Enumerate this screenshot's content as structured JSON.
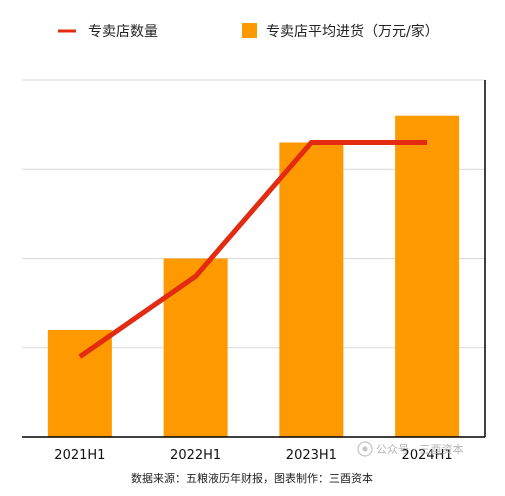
{
  "legend": {
    "line_label": "专卖店数量",
    "bar_label": "专卖店平均进货（万元/家）"
  },
  "source_note": "数据来源：五粮液历年财报，图表制作：三酉资本",
  "watermark": "公众号 · 三酉资本",
  "colors": {
    "bar": "#FF9900",
    "line": "#E22B10",
    "grid": "#D9D9D9",
    "axis": "#000000"
  },
  "chart_data": {
    "type": "bar",
    "title": "",
    "xlabel": "",
    "ylabel": "",
    "categories": [
      "2021H1",
      "2022H1",
      "2023H1",
      "2024H1"
    ],
    "series": [
      {
        "name": "专卖店平均进货（万元/家）",
        "type": "bar",
        "axis": "left",
        "values": [
          1.2,
          2.0,
          3.3,
          3.6
        ]
      },
      {
        "name": "专卖店数量",
        "type": "line",
        "axis": "right",
        "values": [
          0.9,
          1.8,
          3.3,
          3.3
        ]
      }
    ],
    "ylim": [
      0,
      4
    ],
    "y_ticks_labeled": false,
    "grid": true,
    "legend_position": "top"
  }
}
